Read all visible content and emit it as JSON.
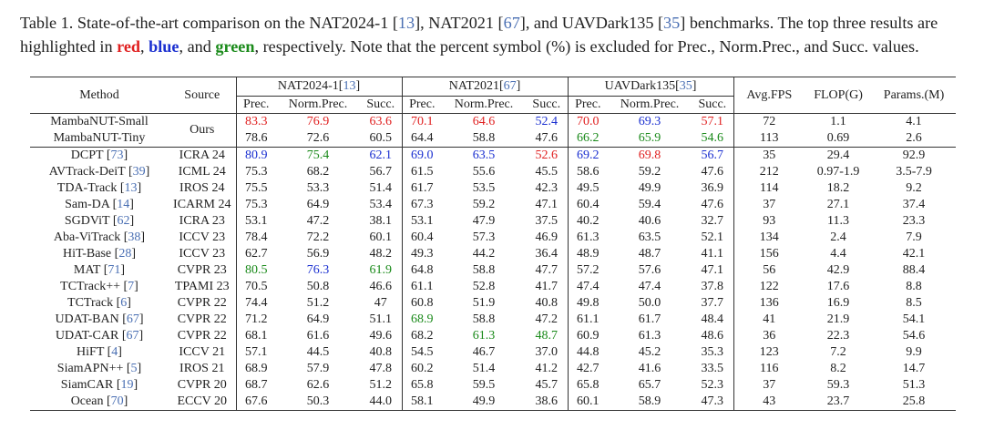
{
  "caption": {
    "p1": "Table 1. State-of-the-art comparison on the NAT2024-1 [",
    "c1": "13",
    "p2": "], NAT2021 [",
    "c2": "67",
    "p3": "], and UAVDark135 [",
    "c3": "35",
    "p4": "] benchmarks. The top three results are highlighted in ",
    "red": "red",
    "p5": ", ",
    "blue": "blue",
    "p6": ", and ",
    "green": "green",
    "p7": ", respectively. Note that the percent symbol (%) is excluded for Prec., Norm.Prec., and Succ. values."
  },
  "header": {
    "method": "Method",
    "source": "Source",
    "groups": [
      {
        "name": "NAT2024-1",
        "cite": "13"
      },
      {
        "name": "NAT2021",
        "cite": "67"
      },
      {
        "name": "UAVDark135",
        "cite": "35"
      }
    ],
    "metrics": [
      "Prec.",
      "Norm.Prec.",
      "Succ."
    ],
    "fps": "Avg.FPS",
    "flop": "FLOP(G)",
    "params": "Params.(M)"
  },
  "ours": {
    "source": "Ours",
    "rows": [
      {
        "method": "MambaNUT-Small",
        "vals": [
          {
            "v": "83.3",
            "c": "red"
          },
          {
            "v": "76.9",
            "c": "red"
          },
          {
            "v": "63.6",
            "c": "red"
          },
          {
            "v": "70.1",
            "c": "red"
          },
          {
            "v": "64.6",
            "c": "red"
          },
          {
            "v": "52.4",
            "c": "blue"
          },
          {
            "v": "70.0",
            "c": "red"
          },
          {
            "v": "69.3",
            "c": "blue"
          },
          {
            "v": "57.1",
            "c": "red"
          },
          {
            "v": "72",
            "c": ""
          },
          {
            "v": "1.1",
            "c": ""
          },
          {
            "v": "4.1",
            "c": ""
          }
        ]
      },
      {
        "method": "MambaNUT-Tiny",
        "vals": [
          {
            "v": "78.6",
            "c": ""
          },
          {
            "v": "72.6",
            "c": ""
          },
          {
            "v": "60.5",
            "c": ""
          },
          {
            "v": "64.4",
            "c": ""
          },
          {
            "v": "58.8",
            "c": ""
          },
          {
            "v": "47.6",
            "c": ""
          },
          {
            "v": "66.2",
            "c": "green"
          },
          {
            "v": "65.9",
            "c": "green"
          },
          {
            "v": "54.6",
            "c": "green"
          },
          {
            "v": "113",
            "c": ""
          },
          {
            "v": "0.69",
            "c": "b"
          },
          {
            "v": "2.6",
            "c": "b"
          }
        ]
      }
    ]
  },
  "rows": [
    {
      "method": "DCPT",
      "cite": "73",
      "source": "ICRA 24",
      "vals": [
        {
          "v": "80.9",
          "c": "blue"
        },
        {
          "v": "75.4",
          "c": "green"
        },
        {
          "v": "62.1",
          "c": "blue"
        },
        {
          "v": "69.0",
          "c": "blue"
        },
        {
          "v": "63.5",
          "c": "blue"
        },
        {
          "v": "52.6",
          "c": "red"
        },
        {
          "v": "69.2",
          "c": "blue"
        },
        {
          "v": "69.8",
          "c": "red"
        },
        {
          "v": "56.7",
          "c": "blue"
        },
        {
          "v": "35",
          "c": ""
        },
        {
          "v": "29.4",
          "c": ""
        },
        {
          "v": "92.9",
          "c": ""
        }
      ]
    },
    {
      "method": "AVTrack-DeiT",
      "cite": "39",
      "source": "ICML 24",
      "vals": [
        {
          "v": "75.3",
          "c": ""
        },
        {
          "v": "68.2",
          "c": ""
        },
        {
          "v": "56.7",
          "c": ""
        },
        {
          "v": "61.5",
          "c": ""
        },
        {
          "v": "55.6",
          "c": ""
        },
        {
          "v": "45.5",
          "c": ""
        },
        {
          "v": "58.6",
          "c": ""
        },
        {
          "v": "59.2",
          "c": ""
        },
        {
          "v": "47.6",
          "c": ""
        },
        {
          "v": "212",
          "c": "b"
        },
        {
          "v": "0.97-1.9",
          "c": ""
        },
        {
          "v": "3.5-7.9",
          "c": ""
        }
      ]
    },
    {
      "method": "TDA-Track",
      "cite": "13",
      "source": "IROS 24",
      "vals": [
        {
          "v": "75.5",
          "c": ""
        },
        {
          "v": "53.3",
          "c": ""
        },
        {
          "v": "51.4",
          "c": ""
        },
        {
          "v": "61.7",
          "c": ""
        },
        {
          "v": "53.5",
          "c": ""
        },
        {
          "v": "42.3",
          "c": ""
        },
        {
          "v": "49.5",
          "c": ""
        },
        {
          "v": "49.9",
          "c": ""
        },
        {
          "v": "36.9",
          "c": ""
        },
        {
          "v": "114",
          "c": ""
        },
        {
          "v": "18.2",
          "c": ""
        },
        {
          "v": "9.2",
          "c": ""
        }
      ]
    },
    {
      "method": "Sam-DA",
      "cite": "14",
      "source": "ICARM 24",
      "vals": [
        {
          "v": "75.3",
          "c": ""
        },
        {
          "v": "64.9",
          "c": ""
        },
        {
          "v": "53.4",
          "c": ""
        },
        {
          "v": "67.3",
          "c": ""
        },
        {
          "v": "59.2",
          "c": ""
        },
        {
          "v": "47.1",
          "c": ""
        },
        {
          "v": "60.4",
          "c": ""
        },
        {
          "v": "59.4",
          "c": ""
        },
        {
          "v": "47.6",
          "c": ""
        },
        {
          "v": "37",
          "c": ""
        },
        {
          "v": "27.1",
          "c": ""
        },
        {
          "v": "37.4",
          "c": ""
        }
      ]
    },
    {
      "method": "SGDViT",
      "cite": "62",
      "source": "ICRA 23",
      "vals": [
        {
          "v": "53.1",
          "c": ""
        },
        {
          "v": "47.2",
          "c": ""
        },
        {
          "v": "38.1",
          "c": ""
        },
        {
          "v": "53.1",
          "c": ""
        },
        {
          "v": "47.9",
          "c": ""
        },
        {
          "v": "37.5",
          "c": ""
        },
        {
          "v": "40.2",
          "c": ""
        },
        {
          "v": "40.6",
          "c": ""
        },
        {
          "v": "32.7",
          "c": ""
        },
        {
          "v": "93",
          "c": ""
        },
        {
          "v": "11.3",
          "c": ""
        },
        {
          "v": "23.3",
          "c": ""
        }
      ]
    },
    {
      "method": "Aba-ViTrack",
      "cite": "38",
      "source": "ICCV 23",
      "vals": [
        {
          "v": "78.4",
          "c": ""
        },
        {
          "v": "72.2",
          "c": ""
        },
        {
          "v": "60.1",
          "c": ""
        },
        {
          "v": "60.4",
          "c": ""
        },
        {
          "v": "57.3",
          "c": ""
        },
        {
          "v": "46.9",
          "c": ""
        },
        {
          "v": "61.3",
          "c": ""
        },
        {
          "v": "63.5",
          "c": ""
        },
        {
          "v": "52.1",
          "c": ""
        },
        {
          "v": "134",
          "c": ""
        },
        {
          "v": "2.4",
          "c": ""
        },
        {
          "v": "7.9",
          "c": ""
        }
      ]
    },
    {
      "method": "HiT-Base",
      "cite": "28",
      "source": "ICCV 23",
      "vals": [
        {
          "v": "62.7",
          "c": ""
        },
        {
          "v": "56.9",
          "c": ""
        },
        {
          "v": "48.2",
          "c": ""
        },
        {
          "v": "49.3",
          "c": ""
        },
        {
          "v": "44.2",
          "c": ""
        },
        {
          "v": "36.4",
          "c": ""
        },
        {
          "v": "48.9",
          "c": ""
        },
        {
          "v": "48.7",
          "c": ""
        },
        {
          "v": "41.1",
          "c": ""
        },
        {
          "v": "156",
          "c": ""
        },
        {
          "v": "4.4",
          "c": ""
        },
        {
          "v": "42.1",
          "c": ""
        }
      ]
    },
    {
      "method": "MAT",
      "cite": "71",
      "source": "CVPR 23",
      "vals": [
        {
          "v": "80.5",
          "c": "green"
        },
        {
          "v": "76.3",
          "c": "blue"
        },
        {
          "v": "61.9",
          "c": "green"
        },
        {
          "v": "64.8",
          "c": ""
        },
        {
          "v": "58.8",
          "c": ""
        },
        {
          "v": "47.7",
          "c": ""
        },
        {
          "v": "57.2",
          "c": ""
        },
        {
          "v": "57.6",
          "c": ""
        },
        {
          "v": "47.1",
          "c": ""
        },
        {
          "v": "56",
          "c": ""
        },
        {
          "v": "42.9",
          "c": ""
        },
        {
          "v": "88.4",
          "c": ""
        }
      ]
    },
    {
      "method": "TCTrack++",
      "cite": "7",
      "source": "TPAMI 23",
      "vals": [
        {
          "v": "70.5",
          "c": ""
        },
        {
          "v": "50.8",
          "c": ""
        },
        {
          "v": "46.6",
          "c": ""
        },
        {
          "v": "61.1",
          "c": ""
        },
        {
          "v": "52.8",
          "c": ""
        },
        {
          "v": "41.7",
          "c": ""
        },
        {
          "v": "47.4",
          "c": ""
        },
        {
          "v": "47.4",
          "c": ""
        },
        {
          "v": "37.8",
          "c": ""
        },
        {
          "v": "122",
          "c": ""
        },
        {
          "v": "17.6",
          "c": ""
        },
        {
          "v": "8.8",
          "c": ""
        }
      ]
    },
    {
      "method": "TCTrack",
      "cite": "6",
      "source": "CVPR 22",
      "vals": [
        {
          "v": "74.4",
          "c": ""
        },
        {
          "v": "51.2",
          "c": ""
        },
        {
          "v": "47",
          "c": ""
        },
        {
          "v": "60.8",
          "c": ""
        },
        {
          "v": "51.9",
          "c": ""
        },
        {
          "v": "40.8",
          "c": ""
        },
        {
          "v": "49.8",
          "c": ""
        },
        {
          "v": "50.0",
          "c": ""
        },
        {
          "v": "37.7",
          "c": ""
        },
        {
          "v": "136",
          "c": ""
        },
        {
          "v": "16.9",
          "c": ""
        },
        {
          "v": "8.5",
          "c": ""
        }
      ]
    },
    {
      "method": "UDAT-BAN",
      "cite": "67",
      "source": "CVPR 22",
      "vals": [
        {
          "v": "71.2",
          "c": ""
        },
        {
          "v": "64.9",
          "c": ""
        },
        {
          "v": "51.1",
          "c": ""
        },
        {
          "v": "68.9",
          "c": "green"
        },
        {
          "v": "58.8",
          "c": ""
        },
        {
          "v": "47.2",
          "c": ""
        },
        {
          "v": "61.1",
          "c": ""
        },
        {
          "v": "61.7",
          "c": ""
        },
        {
          "v": "48.4",
          "c": ""
        },
        {
          "v": "41",
          "c": ""
        },
        {
          "v": "21.9",
          "c": ""
        },
        {
          "v": "54.1",
          "c": ""
        }
      ]
    },
    {
      "method": "UDAT-CAR",
      "cite": "67",
      "source": "CVPR 22",
      "vals": [
        {
          "v": "68.1",
          "c": ""
        },
        {
          "v": "61.6",
          "c": ""
        },
        {
          "v": "49.6",
          "c": ""
        },
        {
          "v": "68.2",
          "c": ""
        },
        {
          "v": "61.3",
          "c": "green"
        },
        {
          "v": "48.7",
          "c": "green"
        },
        {
          "v": "60.9",
          "c": ""
        },
        {
          "v": "61.3",
          "c": ""
        },
        {
          "v": "48.6",
          "c": ""
        },
        {
          "v": "36",
          "c": ""
        },
        {
          "v": "22.3",
          "c": ""
        },
        {
          "v": "54.6",
          "c": ""
        }
      ]
    },
    {
      "method": "HiFT",
      "cite": "4",
      "source": "ICCV 21",
      "vals": [
        {
          "v": "57.1",
          "c": ""
        },
        {
          "v": "44.5",
          "c": ""
        },
        {
          "v": "40.8",
          "c": ""
        },
        {
          "v": "54.5",
          "c": ""
        },
        {
          "v": "46.7",
          "c": ""
        },
        {
          "v": "37.0",
          "c": ""
        },
        {
          "v": "44.8",
          "c": ""
        },
        {
          "v": "45.2",
          "c": ""
        },
        {
          "v": "35.3",
          "c": ""
        },
        {
          "v": "123",
          "c": ""
        },
        {
          "v": "7.2",
          "c": ""
        },
        {
          "v": "9.9",
          "c": ""
        }
      ]
    },
    {
      "method": "SiamAPN++",
      "cite": "5",
      "source": "IROS 21",
      "vals": [
        {
          "v": "68.9",
          "c": ""
        },
        {
          "v": "57.9",
          "c": ""
        },
        {
          "v": "47.8",
          "c": ""
        },
        {
          "v": "60.2",
          "c": ""
        },
        {
          "v": "51.4",
          "c": ""
        },
        {
          "v": "41.2",
          "c": ""
        },
        {
          "v": "42.7",
          "c": ""
        },
        {
          "v": "41.6",
          "c": ""
        },
        {
          "v": "33.5",
          "c": ""
        },
        {
          "v": "116",
          "c": ""
        },
        {
          "v": "8.2",
          "c": ""
        },
        {
          "v": "14.7",
          "c": ""
        }
      ]
    },
    {
      "method": "SiamCAR",
      "cite": "19",
      "source": "CVPR 20",
      "vals": [
        {
          "v": "68.7",
          "c": ""
        },
        {
          "v": "62.6",
          "c": ""
        },
        {
          "v": "51.2",
          "c": ""
        },
        {
          "v": "65.8",
          "c": ""
        },
        {
          "v": "59.5",
          "c": ""
        },
        {
          "v": "45.7",
          "c": ""
        },
        {
          "v": "65.8",
          "c": ""
        },
        {
          "v": "65.7",
          "c": ""
        },
        {
          "v": "52.3",
          "c": ""
        },
        {
          "v": "37",
          "c": ""
        },
        {
          "v": "59.3",
          "c": ""
        },
        {
          "v": "51.3",
          "c": ""
        }
      ]
    },
    {
      "method": "Ocean",
      "cite": "70",
      "source": "ECCV 20",
      "vals": [
        {
          "v": "67.6",
          "c": ""
        },
        {
          "v": "50.3",
          "c": ""
        },
        {
          "v": "44.0",
          "c": ""
        },
        {
          "v": "58.1",
          "c": ""
        },
        {
          "v": "49.9",
          "c": ""
        },
        {
          "v": "38.6",
          "c": ""
        },
        {
          "v": "60.1",
          "c": ""
        },
        {
          "v": "58.9",
          "c": ""
        },
        {
          "v": "47.3",
          "c": ""
        },
        {
          "v": "43",
          "c": ""
        },
        {
          "v": "23.7",
          "c": ""
        },
        {
          "v": "25.8",
          "c": ""
        }
      ]
    }
  ]
}
